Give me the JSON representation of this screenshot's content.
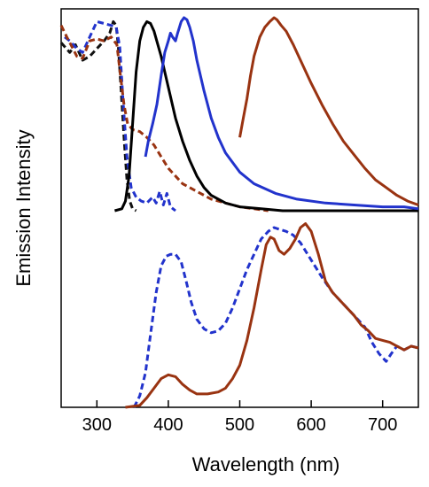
{
  "chart_data": {
    "type": "line",
    "xlabel": "Wavelength (nm)",
    "ylabel": "Emission Intensity",
    "xlim": [
      250,
      750
    ],
    "x_ticks": [
      300,
      400,
      500,
      600,
      700
    ],
    "y_ticks_labeled": false,
    "grid": false,
    "legend": "none",
    "panels": [
      {
        "name": "top",
        "ylim": [
          0,
          1
        ],
        "series": [
          {
            "name": "",
            "color": "#111111",
            "style": "dashed",
            "points": [
              [
                250,
                0.87
              ],
              [
                262,
                0.82
              ],
              [
                270,
                0.86
              ],
              [
                280,
                0.78
              ],
              [
                290,
                0.8
              ],
              [
                300,
                0.84
              ],
              [
                310,
                0.88
              ],
              [
                318,
                0.92
              ],
              [
                323,
                0.98
              ],
              [
                327,
                0.96
              ],
              [
                330,
                0.85
              ],
              [
                334,
                0.62
              ],
              [
                338,
                0.38
              ],
              [
                342,
                0.16
              ],
              [
                346,
                0.05
              ],
              [
                350,
                0.01
              ],
              [
                355,
                0.0
              ]
            ]
          },
          {
            "name": "",
            "color": "#2233cc",
            "style": "dashed",
            "points": [
              [
                255,
                0.9
              ],
              [
                262,
                0.88
              ],
              [
                272,
                0.84
              ],
              [
                280,
                0.82
              ],
              [
                290,
                0.9
              ],
              [
                300,
                0.98
              ],
              [
                310,
                0.97
              ],
              [
                320,
                0.96
              ],
              [
                327,
                0.95
              ],
              [
                332,
                0.85
              ],
              [
                337,
                0.55
              ],
              [
                342,
                0.28
              ],
              [
                348,
                0.12
              ],
              [
                355,
                0.07
              ],
              [
                362,
                0.05
              ],
              [
                370,
                0.04
              ],
              [
                378,
                0.07
              ],
              [
                383,
                0.04
              ],
              [
                388,
                0.1
              ],
              [
                393,
                0.03
              ],
              [
                398,
                0.09
              ],
              [
                403,
                0.02
              ],
              [
                410,
                0.0
              ]
            ]
          },
          {
            "name": "",
            "color": "#993311",
            "style": "dashed",
            "points": [
              [
                250,
                0.96
              ],
              [
                258,
                0.9
              ],
              [
                265,
                0.85
              ],
              [
                272,
                0.8
              ],
              [
                280,
                0.79
              ],
              [
                290,
                0.88
              ],
              [
                300,
                0.89
              ],
              [
                310,
                0.88
              ],
              [
                320,
                0.9
              ],
              [
                328,
                0.86
              ],
              [
                333,
                0.7
              ],
              [
                338,
                0.55
              ],
              [
                343,
                0.45
              ],
              [
                350,
                0.42
              ],
              [
                360,
                0.41
              ],
              [
                370,
                0.38
              ],
              [
                380,
                0.34
              ],
              [
                390,
                0.28
              ],
              [
                400,
                0.22
              ],
              [
                410,
                0.18
              ],
              [
                420,
                0.14
              ],
              [
                440,
                0.1
              ],
              [
                460,
                0.06
              ],
              [
                480,
                0.04
              ],
              [
                500,
                0.02
              ],
              [
                520,
                0.01
              ],
              [
                540,
                0.0
              ]
            ]
          },
          {
            "name": "",
            "color": "#000000",
            "style": "solid",
            "points": [
              [
                325,
                0.0
              ],
              [
                335,
                0.01
              ],
              [
                340,
                0.05
              ],
              [
                345,
                0.18
              ],
              [
                350,
                0.45
              ],
              [
                355,
                0.72
              ],
              [
                360,
                0.88
              ],
              [
                365,
                0.95
              ],
              [
                370,
                0.98
              ],
              [
                375,
                0.97
              ],
              [
                380,
                0.93
              ],
              [
                390,
                0.8
              ],
              [
                400,
                0.64
              ],
              [
                410,
                0.48
              ],
              [
                420,
                0.36
              ],
              [
                430,
                0.26
              ],
              [
                440,
                0.18
              ],
              [
                450,
                0.12
              ],
              [
                460,
                0.08
              ],
              [
                480,
                0.04
              ],
              [
                500,
                0.02
              ],
              [
                530,
                0.01
              ],
              [
                560,
                0.0
              ],
              [
                600,
                0.0
              ],
              [
                750,
                0.0
              ]
            ]
          },
          {
            "name": "",
            "color": "#2233cc",
            "style": "solid",
            "points": [
              [
                368,
                0.28
              ],
              [
                372,
                0.36
              ],
              [
                378,
                0.45
              ],
              [
                384,
                0.55
              ],
              [
                390,
                0.7
              ],
              [
                395,
                0.82
              ],
              [
                400,
                0.88
              ],
              [
                403,
                0.92
              ],
              [
                406,
                0.9
              ],
              [
                410,
                0.88
              ],
              [
                413,
                0.92
              ],
              [
                418,
                0.98
              ],
              [
                422,
                1.0
              ],
              [
                426,
                0.99
              ],
              [
                430,
                0.95
              ],
              [
                435,
                0.88
              ],
              [
                440,
                0.78
              ],
              [
                450,
                0.62
              ],
              [
                460,
                0.48
              ],
              [
                470,
                0.38
              ],
              [
                480,
                0.3
              ],
              [
                500,
                0.2
              ],
              [
                520,
                0.14
              ],
              [
                550,
                0.09
              ],
              [
                580,
                0.06
              ],
              [
                620,
                0.04
              ],
              [
                660,
                0.03
              ],
              [
                700,
                0.02
              ],
              [
                730,
                0.02
              ],
              [
                750,
                0.01
              ]
            ]
          },
          {
            "name": "",
            "color": "#993311",
            "style": "solid",
            "points": [
              [
                500,
                0.38
              ],
              [
                505,
                0.48
              ],
              [
                510,
                0.58
              ],
              [
                515,
                0.7
              ],
              [
                520,
                0.8
              ],
              [
                528,
                0.9
              ],
              [
                535,
                0.95
              ],
              [
                542,
                0.98
              ],
              [
                548,
                1.0
              ],
              [
                552,
                0.99
              ],
              [
                558,
                0.96
              ],
              [
                565,
                0.93
              ],
              [
                575,
                0.86
              ],
              [
                585,
                0.78
              ],
              [
                600,
                0.66
              ],
              [
                615,
                0.55
              ],
              [
                630,
                0.45
              ],
              [
                645,
                0.36
              ],
              [
                660,
                0.29
              ],
              [
                675,
                0.22
              ],
              [
                690,
                0.16
              ],
              [
                705,
                0.12
              ],
              [
                720,
                0.08
              ],
              [
                735,
                0.05
              ],
              [
                750,
                0.03
              ]
            ]
          }
        ]
      },
      {
        "name": "bottom",
        "ylim": [
          0,
          1
        ],
        "series": [
          {
            "name": "",
            "color": "#2233cc",
            "style": "dashed",
            "points": [
              [
                352,
                0.0
              ],
              [
                360,
                0.06
              ],
              [
                368,
                0.18
              ],
              [
                375,
                0.38
              ],
              [
                383,
                0.6
              ],
              [
                390,
                0.74
              ],
              [
                397,
                0.79
              ],
              [
                403,
                0.8
              ],
              [
                410,
                0.8
              ],
              [
                418,
                0.76
              ],
              [
                425,
                0.66
              ],
              [
                432,
                0.55
              ],
              [
                440,
                0.46
              ],
              [
                450,
                0.41
              ],
              [
                460,
                0.39
              ],
              [
                470,
                0.4
              ],
              [
                480,
                0.44
              ],
              [
                490,
                0.52
              ],
              [
                500,
                0.62
              ],
              [
                510,
                0.72
              ],
              [
                520,
                0.8
              ],
              [
                530,
                0.88
              ],
              [
                540,
                0.92
              ],
              [
                548,
                0.94
              ],
              [
                556,
                0.93
              ],
              [
                565,
                0.92
              ],
              [
                575,
                0.9
              ],
              [
                585,
                0.86
              ],
              [
                600,
                0.77
              ],
              [
                615,
                0.68
              ],
              [
                630,
                0.6
              ],
              [
                645,
                0.54
              ],
              [
                660,
                0.48
              ],
              [
                675,
                0.42
              ],
              [
                685,
                0.34
              ],
              [
                695,
                0.28
              ],
              [
                705,
                0.24
              ],
              [
                712,
                0.28
              ],
              [
                720,
                0.32
              ],
              [
                730,
                0.3
              ],
              [
                740,
                0.32
              ],
              [
                750,
                0.31
              ]
            ]
          },
          {
            "name": "",
            "color": "#993311",
            "style": "solid",
            "points": [
              [
                340,
                0.0
              ],
              [
                360,
                0.01
              ],
              [
                370,
                0.05
              ],
              [
                380,
                0.1
              ],
              [
                390,
                0.15
              ],
              [
                400,
                0.17
              ],
              [
                410,
                0.16
              ],
              [
                420,
                0.12
              ],
              [
                430,
                0.09
              ],
              [
                440,
                0.07
              ],
              [
                455,
                0.07
              ],
              [
                470,
                0.08
              ],
              [
                480,
                0.1
              ],
              [
                490,
                0.15
              ],
              [
                500,
                0.22
              ],
              [
                510,
                0.35
              ],
              [
                520,
                0.52
              ],
              [
                530,
                0.72
              ],
              [
                537,
                0.85
              ],
              [
                543,
                0.89
              ],
              [
                548,
                0.88
              ],
              [
                555,
                0.82
              ],
              [
                562,
                0.8
              ],
              [
                570,
                0.83
              ],
              [
                578,
                0.88
              ],
              [
                585,
                0.94
              ],
              [
                592,
                0.96
              ],
              [
                600,
                0.92
              ],
              [
                610,
                0.8
              ],
              [
                620,
                0.66
              ],
              [
                630,
                0.6
              ],
              [
                640,
                0.56
              ],
              [
                650,
                0.52
              ],
              [
                660,
                0.48
              ],
              [
                670,
                0.43
              ],
              [
                680,
                0.4
              ],
              [
                690,
                0.36
              ],
              [
                700,
                0.35
              ],
              [
                710,
                0.34
              ],
              [
                720,
                0.32
              ],
              [
                730,
                0.3
              ],
              [
                740,
                0.32
              ],
              [
                750,
                0.31
              ]
            ]
          }
        ]
      }
    ]
  }
}
